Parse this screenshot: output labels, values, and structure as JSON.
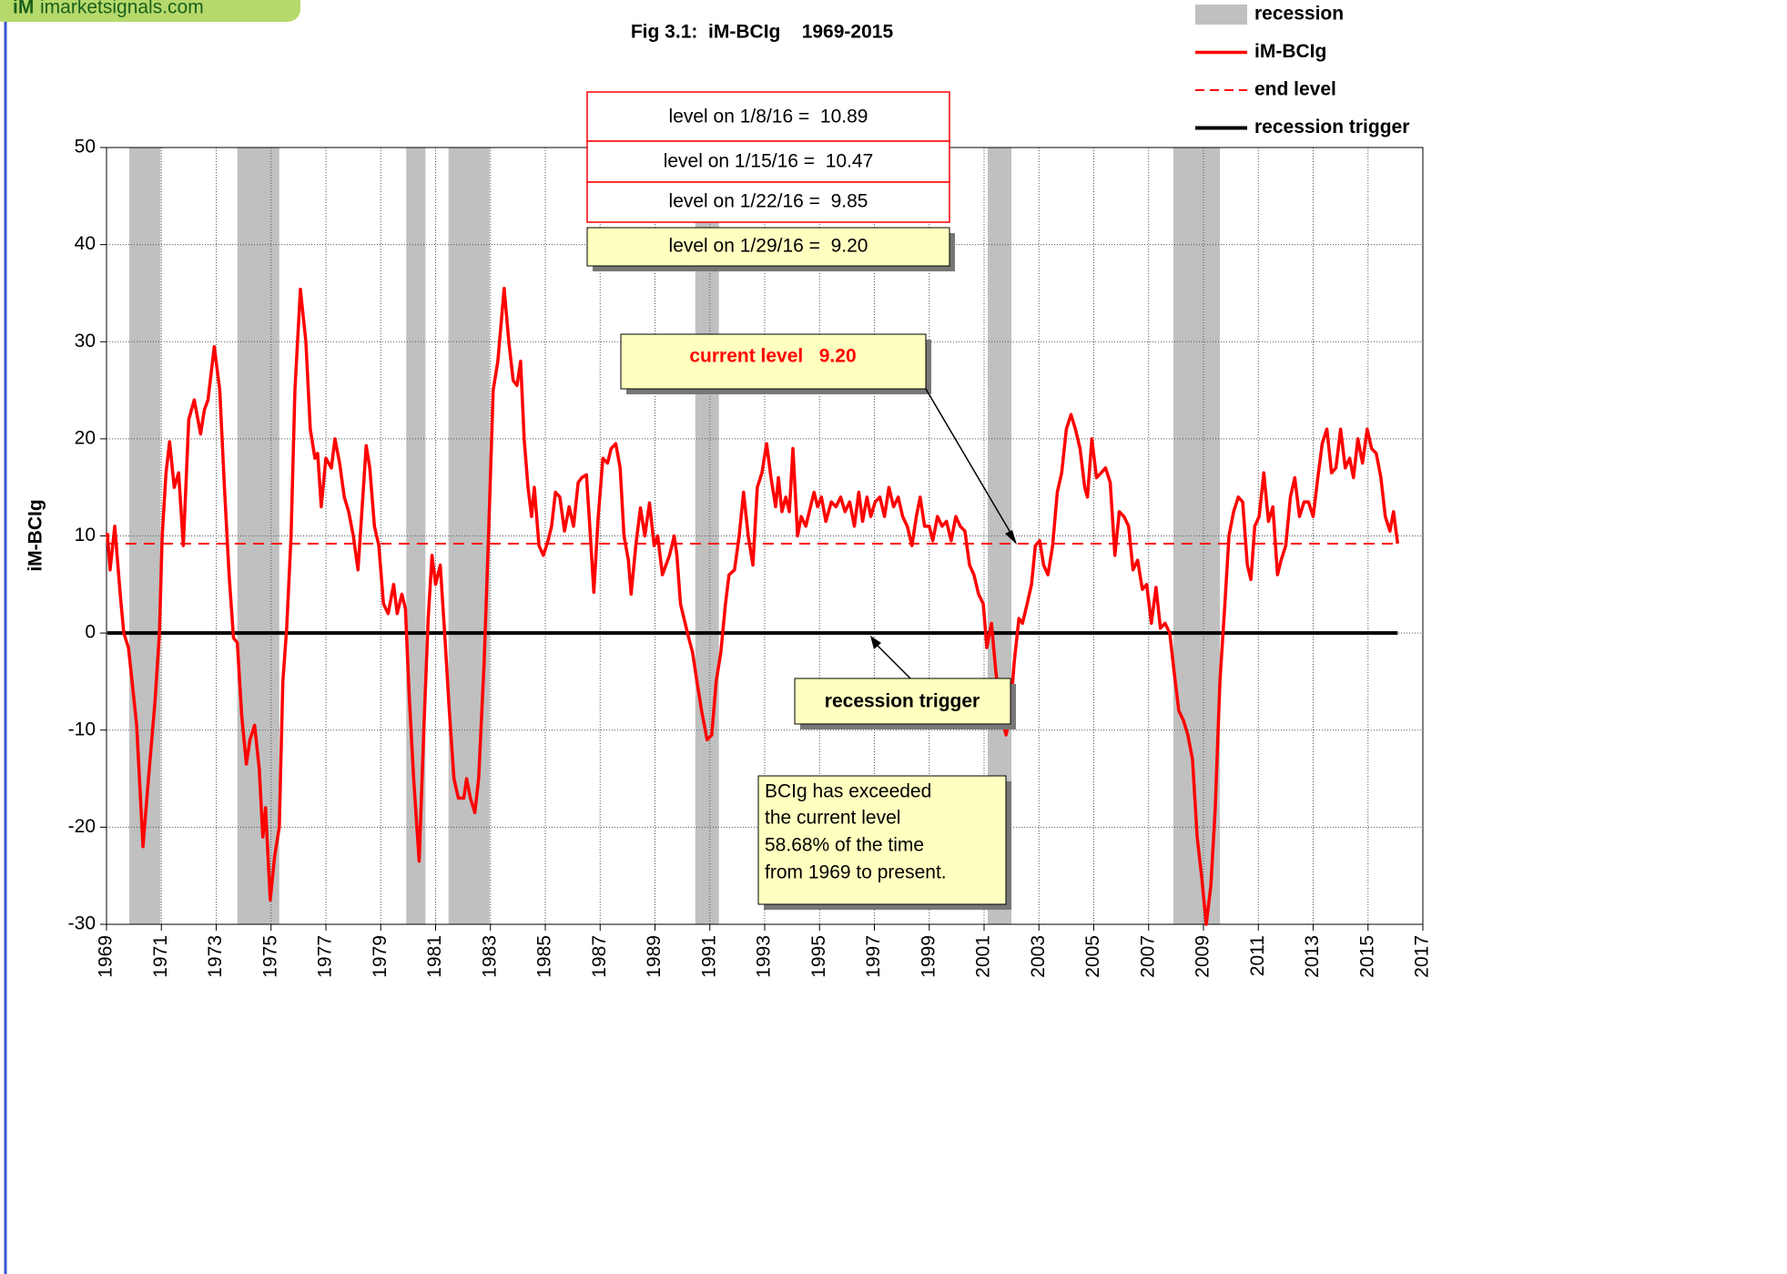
{
  "chart_data": {
    "type": "line",
    "logo": {
      "mark": "iM",
      "text": "imarketsignals.com"
    },
    "title": "Fig 3.1:  iM-BCIg    1969-2015",
    "y_label": "iM-BCIg",
    "xlim": [
      1969,
      2017
    ],
    "ylim": [
      -30,
      50
    ],
    "xticks": [
      1969,
      1971,
      1973,
      1975,
      1977,
      1979,
      1981,
      1983,
      1985,
      1987,
      1989,
      1991,
      1993,
      1995,
      1997,
      1999,
      2001,
      2003,
      2005,
      2007,
      2009,
      2011,
      2013,
      2015,
      2017
    ],
    "yticks": [
      -30,
      -20,
      -10,
      0,
      10,
      20,
      30,
      40,
      50
    ],
    "grid": true,
    "legend": "top-right",
    "recessions": {
      "name": "recession",
      "color": "#c0c0c0",
      "periods": [
        [
          1969.83,
          1970.97
        ],
        [
          1973.77,
          1975.3
        ],
        [
          1979.93,
          1980.63
        ],
        [
          1981.47,
          1982.97
        ],
        [
          1990.47,
          1991.33
        ],
        [
          2001.13,
          2002.0
        ],
        [
          2007.9,
          2009.6
        ]
      ]
    },
    "series": [
      {
        "name": "iM-BCIg",
        "color": "#ff0000",
        "x": [
          1969.03,
          1969.13,
          1969.3,
          1969.5,
          1969.63,
          1969.8,
          1969.97,
          1970.1,
          1970.33,
          1970.53,
          1970.77,
          1970.93,
          1971.03,
          1971.17,
          1971.3,
          1971.47,
          1971.63,
          1971.8,
          1972.0,
          1972.2,
          1972.43,
          1972.57,
          1972.7,
          1972.93,
          1973.13,
          1973.3,
          1973.47,
          1973.63,
          1973.77,
          1973.93,
          1974.1,
          1974.23,
          1974.4,
          1974.57,
          1974.7,
          1974.8,
          1974.97,
          1975.13,
          1975.3,
          1975.43,
          1975.57,
          1975.73,
          1975.87,
          1976.07,
          1976.27,
          1976.43,
          1976.6,
          1976.7,
          1976.83,
          1977.0,
          1977.2,
          1977.33,
          1977.5,
          1977.67,
          1977.83,
          1978.0,
          1978.17,
          1978.3,
          1978.47,
          1978.6,
          1978.77,
          1978.93,
          1979.1,
          1979.27,
          1979.47,
          1979.6,
          1979.77,
          1979.9,
          1980.03,
          1980.2,
          1980.4,
          1980.57,
          1980.73,
          1980.87,
          1981.0,
          1981.17,
          1981.33,
          1981.5,
          1981.67,
          1981.83,
          1982.03,
          1982.13,
          1982.27,
          1982.43,
          1982.57,
          1982.77,
          1982.93,
          1983.1,
          1983.27,
          1983.5,
          1983.67,
          1983.83,
          1983.97,
          1984.1,
          1984.23,
          1984.37,
          1984.5,
          1984.6,
          1984.77,
          1984.93,
          1985.1,
          1985.23,
          1985.37,
          1985.53,
          1985.7,
          1985.87,
          1986.03,
          1986.2,
          1986.33,
          1986.5,
          1986.6,
          1986.77,
          1986.93,
          1987.1,
          1987.27,
          1987.4,
          1987.57,
          1987.73,
          1987.87,
          1988.03,
          1988.13,
          1988.3,
          1988.47,
          1988.63,
          1988.8,
          1988.97,
          1989.1,
          1989.27,
          1989.4,
          1989.53,
          1989.7,
          1989.8,
          1989.93,
          1990.1,
          1990.23,
          1990.37,
          1990.53,
          1990.7,
          1990.9,
          1991.07,
          1991.23,
          1991.4,
          1991.57,
          1991.7,
          1991.9,
          1992.07,
          1992.23,
          1992.4,
          1992.57,
          1992.73,
          1992.9,
          1993.07,
          1993.23,
          1993.4,
          1993.5,
          1993.63,
          1993.77,
          1993.9,
          1994.03,
          1994.2,
          1994.33,
          1994.5,
          1994.67,
          1994.8,
          1994.93,
          1995.07,
          1995.23,
          1995.43,
          1995.6,
          1995.77,
          1995.93,
          1996.1,
          1996.27,
          1996.43,
          1996.57,
          1996.73,
          1996.87,
          1997.03,
          1997.2,
          1997.37,
          1997.53,
          1997.7,
          1997.87,
          1998.03,
          1998.2,
          1998.37,
          1998.53,
          1998.67,
          1998.83,
          1999.0,
          1999.13,
          1999.3,
          1999.47,
          1999.63,
          1999.8,
          1999.97,
          2000.13,
          2000.3,
          2000.47,
          2000.63,
          2000.8,
          2000.97,
          2001.1,
          2001.27,
          2001.43,
          2001.63,
          2001.8,
          2001.93,
          2002.1,
          2002.27,
          2002.4,
          2002.57,
          2002.73,
          2002.87,
          2003.03,
          2003.17,
          2003.33,
          2003.5,
          2003.67,
          2003.83,
          2004.0,
          2004.17,
          2004.33,
          2004.5,
          2004.67,
          2004.77,
          2004.93,
          2005.1,
          2005.27,
          2005.43,
          2005.6,
          2005.77,
          2005.93,
          2006.1,
          2006.27,
          2006.43,
          2006.6,
          2006.77,
          2006.93,
          2007.1,
          2007.27,
          2007.43,
          2007.6,
          2007.77,
          2007.93,
          2008.1,
          2008.27,
          2008.43,
          2008.6,
          2008.77,
          2008.93,
          2009.1,
          2009.27,
          2009.43,
          2009.6,
          2009.77,
          2009.93,
          2010.1,
          2010.27,
          2010.43,
          2010.6,
          2010.73,
          2010.87,
          2011.03,
          2011.2,
          2011.37,
          2011.53,
          2011.7,
          2011.83,
          2012.0,
          2012.17,
          2012.33,
          2012.5,
          2012.67,
          2012.83,
          2013.0,
          2013.17,
          2013.33,
          2013.5,
          2013.67,
          2013.83,
          2014.0,
          2014.17,
          2014.33,
          2014.47,
          2014.63,
          2014.8,
          2014.97,
          2015.13,
          2015.3,
          2015.47,
          2015.63,
          2015.8,
          2015.93,
          2016.08
        ],
        "values": [
          10.3,
          6.5,
          11,
          4,
          0,
          -1.5,
          -6,
          -9.5,
          -22,
          -15,
          -7,
          0,
          10,
          16.5,
          19.7,
          15,
          16.5,
          9,
          22,
          24,
          20.5,
          23,
          24,
          29.5,
          25,
          15,
          6,
          -0.5,
          -1,
          -8.5,
          -13.5,
          -11,
          -9.5,
          -14,
          -21,
          -18,
          -27.5,
          -23,
          -20,
          -5,
          0.5,
          10,
          25,
          35.4,
          30,
          21,
          18,
          18.5,
          13,
          18,
          17,
          20,
          17.5,
          14,
          12.5,
          10,
          6.5,
          12,
          19.3,
          17,
          11,
          9,
          3,
          2,
          5,
          2,
          4,
          2.5,
          -6,
          -15,
          -23.5,
          -10,
          1.5,
          8,
          5,
          7,
          0,
          -8,
          -15,
          -17,
          -17,
          -15,
          -17,
          -18.5,
          -15,
          -3,
          10,
          25,
          28,
          35.5,
          30,
          26,
          25.5,
          28,
          20,
          15,
          12,
          15,
          9,
          8,
          9.5,
          11,
          14.5,
          14,
          10.5,
          13,
          11,
          15.5,
          16,
          16.3,
          12,
          4.2,
          12,
          18,
          17.5,
          19,
          19.5,
          17,
          10,
          7.5,
          4,
          9,
          12.9,
          10,
          13.4,
          9,
          10,
          6,
          7,
          8,
          10,
          8,
          3,
          1,
          -0.5,
          -2,
          -5,
          -8,
          -11,
          -10.5,
          -5,
          -2,
          3,
          6,
          6.5,
          10,
          14.5,
          10,
          7,
          15,
          16.5,
          19.5,
          16,
          13,
          16,
          12.5,
          14,
          12.5,
          19,
          10,
          12,
          11,
          13,
          14.5,
          13,
          14,
          11.5,
          13.5,
          13,
          14,
          12.5,
          13.5,
          11,
          14.5,
          11.5,
          14,
          12,
          13.5,
          14,
          12,
          15,
          13,
          14,
          12,
          11,
          9,
          12,
          14,
          11,
          11,
          9.5,
          12,
          11,
          11.5,
          9.5,
          12,
          11,
          10.5,
          7,
          6,
          4,
          3,
          -1.5,
          1,
          -4,
          -8.5,
          -10.5,
          -9,
          -3,
          1.5,
          1,
          3,
          5,
          9,
          9.5,
          7,
          6,
          9,
          14.5,
          16.5,
          21,
          22.5,
          21,
          19,
          15,
          14,
          20,
          16,
          16.5,
          17,
          15.5,
          8,
          12.5,
          12,
          11,
          6.5,
          7.5,
          4.5,
          5,
          1,
          4.7,
          0.5,
          1,
          0,
          -4,
          -8,
          -9,
          -10.5,
          -13,
          -21,
          -25,
          -30,
          -26,
          -18,
          -5,
          2.5,
          10,
          12.5,
          14,
          13.5,
          7,
          5.5,
          11,
          12,
          16.5,
          11.5,
          13,
          6,
          7.5,
          9,
          14,
          16,
          12,
          13.5,
          13.5,
          12,
          16,
          19.5,
          21,
          16.5,
          17,
          21,
          17,
          18,
          16,
          20,
          17.5,
          21,
          19,
          18.5,
          16,
          12,
          10.5,
          12.5,
          9.2
        ]
      }
    ],
    "reference_lines": [
      {
        "name": "end level",
        "value": 9.2,
        "color": "#ff0000",
        "dashed": true
      },
      {
        "name": "recession trigger",
        "value": 0,
        "color": "#000000",
        "dashed": false
      }
    ],
    "annotations": {
      "levels": [
        "level on 1/8/16 =  10.89",
        "level on 1/15/16 =  10.47",
        "level on 1/22/16 =  9.85",
        "level on 1/29/16 =  9.20"
      ],
      "current": "current level   9.20",
      "trigger": "recession trigger",
      "note": [
        "BCIg has exceeded",
        "the current level",
        "58.68% of the time",
        "from 1969 to present."
      ]
    }
  }
}
